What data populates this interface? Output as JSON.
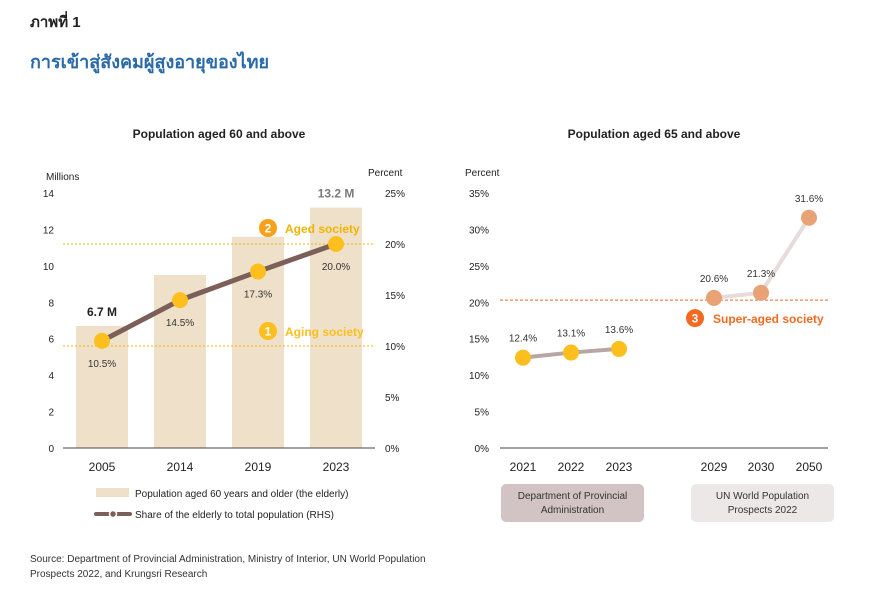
{
  "figure": {
    "label": "ภาพที่ 1",
    "title": "การเข้าสู่สังคมผู้สูงอายุของไทย"
  },
  "source": "Source: Department of Provincial Administration, Ministry of Interior, UN World Population Prospects 2022, and Krungsri Research",
  "colors": {
    "bar": "#efe1c9",
    "line_left": "#7d5f5a",
    "marker": "#fcbf1e",
    "threshold": "#f0b400",
    "badge": "#f7a11a",
    "right_line_dpa": "#b8a5a6",
    "right_line_un": "#e6dcdb",
    "right_marker_un": "#e9a176",
    "super_aged": "#f26a21",
    "box_dpa": "#d2c4c4",
    "box_un": "#ece8e8"
  },
  "chart_data": [
    {
      "type": "bar",
      "title": "Population aged 60 and above",
      "ylabel": "Millions",
      "y2label": "Percent",
      "ylim": [
        0,
        14
      ],
      "y2lim": [
        0,
        25
      ],
      "yticks": [
        "0",
        "2",
        "4",
        "6",
        "8",
        "10",
        "12",
        "14"
      ],
      "y2ticks": [
        "0%",
        "5%",
        "10%",
        "15%",
        "20%",
        "25%"
      ],
      "categories": [
        "2005",
        "2014",
        "2019",
        "2023"
      ],
      "series": [
        {
          "name": "Population aged 60 years and older (the elderly)",
          "type": "bar",
          "axis": "left",
          "values": [
            6.7,
            9.5,
            11.6,
            13.2
          ]
        },
        {
          "name": "Share of the elderly to total population (RHS)",
          "type": "line",
          "axis": "right",
          "values": [
            10.5,
            14.5,
            17.3,
            20.0
          ]
        }
      ],
      "bar_labels": {
        "first": "6.7 M",
        "last": "13.2 M"
      },
      "line_labels": [
        "10.5%",
        "14.5%",
        "17.3%",
        "20.0%"
      ],
      "thresholds": [
        {
          "value": 10,
          "badge": "1",
          "label": "Aging society"
        },
        {
          "value": 20,
          "badge": "2",
          "label": "Aged society"
        }
      ],
      "legend": {
        "position": "bottom",
        "bar_label": "Population aged 60 years and older (the elderly)",
        "line_label": "Share of the elderly to total population (RHS)"
      }
    },
    {
      "type": "line",
      "title": "Population aged 65 and above",
      "ylabel": "Percent",
      "ylim": [
        0,
        35
      ],
      "yticks": [
        "0%",
        "5%",
        "10%",
        "15%",
        "20%",
        "25%",
        "30%",
        "35%"
      ],
      "categories": [
        "2021",
        "2022",
        "2023",
        "2029",
        "2030",
        "2050"
      ],
      "series": [
        {
          "name": "Department of Provincial Administration",
          "x": [
            "2021",
            "2022",
            "2023"
          ],
          "values": [
            12.4,
            13.1,
            13.6
          ],
          "labels": [
            "12.4%",
            "13.1%",
            "13.6%"
          ]
        },
        {
          "name": "UN World Population Prospects 2022",
          "x": [
            "2029",
            "2030",
            "2050"
          ],
          "values": [
            20.6,
            21.3,
            31.6
          ],
          "labels": [
            "20.6%",
            "21.3%",
            "31.6%"
          ]
        }
      ],
      "threshold": {
        "value": 20.3,
        "badge": "3",
        "label": "Super-aged society"
      },
      "source_boxes": [
        "Department of Provincial Administration",
        "UN World Population Prospects 2022"
      ]
    }
  ]
}
